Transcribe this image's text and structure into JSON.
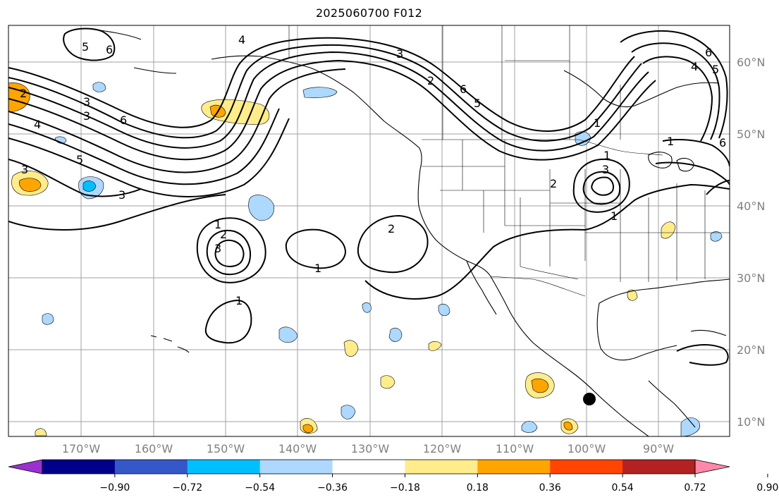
{
  "title": "2025060700 F012",
  "longitude_labels": [
    "170°W",
    "160°W",
    "150°W",
    "140°W",
    "130°W",
    "120°W",
    "110°W",
    "100°W",
    "90°W"
  ],
  "latitude_labels": [
    "60°N",
    "50°N",
    "40°N",
    "30°N",
    "20°N",
    "10°N"
  ],
  "contour_labels": [
    "1",
    "2",
    "3",
    "4",
    "5",
    "6"
  ],
  "colorbar": {
    "tick_labels": [
      "−0.90",
      "−0.72",
      "−0.54",
      "−0.36",
      "−0.18",
      "0.18",
      "0.36",
      "0.54",
      "0.72",
      "0.90"
    ],
    "colors": [
      "#9b30d0",
      "#00008b",
      "#3558c9",
      "#00bfff",
      "#add8ff",
      "#ffffff",
      "#ffec8b",
      "#ffa500",
      "#ff4500",
      "#b22222",
      "#ff88aa"
    ]
  },
  "colors": {
    "coast": "#000000",
    "grid": "#a0a0a0",
    "positive_light": "#ffec8b",
    "positive_mid": "#ffa500",
    "positive_strong": "#ff4500",
    "negative_light": "#add8ff",
    "negative_mid": "#00bfff"
  }
}
